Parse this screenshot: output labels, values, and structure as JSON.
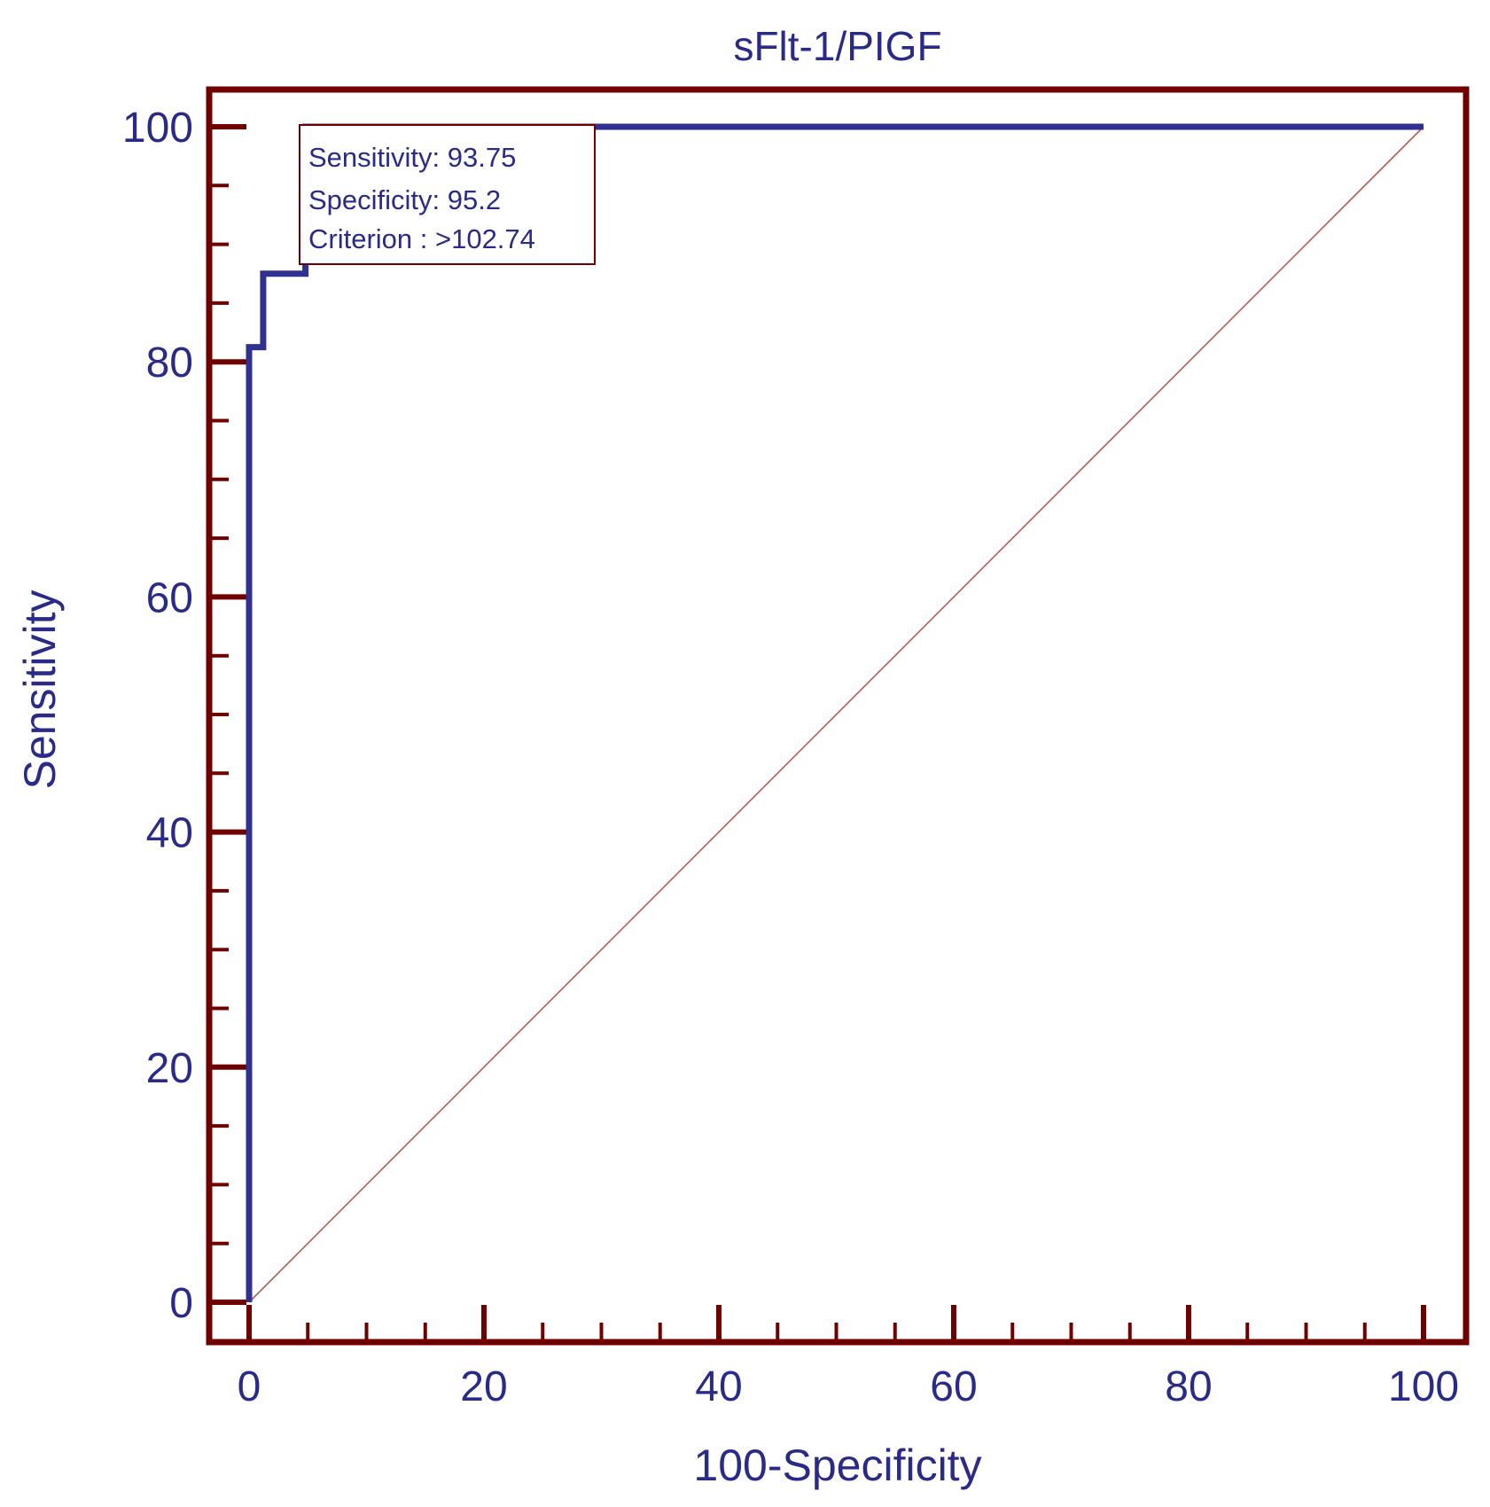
{
  "chart_data": {
    "type": "line",
    "title": "sFlt-1/PIGF",
    "xlabel": "100-Specificity",
    "ylabel": "Sensitivity",
    "xlim": [
      0,
      100
    ],
    "ylim": [
      0,
      100
    ],
    "x_ticks": [
      "0",
      "20",
      "40",
      "60",
      "80",
      "100"
    ],
    "y_ticks": [
      "0",
      "20",
      "40",
      "60",
      "80",
      "100"
    ],
    "grid": false,
    "series": [
      {
        "style": "roc-curve",
        "color": "#303090",
        "points": [
          [
            0,
            0
          ],
          [
            0,
            81.25
          ],
          [
            1.2,
            81.25
          ],
          [
            1.2,
            87.5
          ],
          [
            4.8,
            87.5
          ],
          [
            4.8,
            100
          ],
          [
            100,
            100
          ]
        ]
      },
      {
        "style": "reference-diagonal",
        "color": "#b85a5a",
        "points": [
          [
            0,
            0
          ],
          [
            100,
            100
          ]
        ]
      }
    ],
    "annotation": {
      "lines": [
        "Sensitivity: 93.75",
        "Specificity: 95.2",
        "Criterion : >102.74"
      ]
    },
    "colors": {
      "frame": "#700000",
      "text": "#2a2a88"
    }
  }
}
